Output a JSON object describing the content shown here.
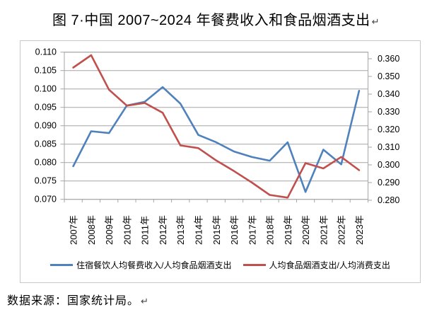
{
  "page": {
    "title": "图 7·中国 2007~2024 年餐费收入和食品烟酒支出",
    "title_end_mark": "↵",
    "source_note": "数据来源：国家统计局。",
    "source_end_mark": "↵"
  },
  "chart_data": {
    "type": "line",
    "title": "图 7 中国 2007~2024 年餐费收入和食品烟酒支出",
    "categories": [
      "2007年",
      "2008年",
      "2009年",
      "2010年",
      "2011年",
      "2012年",
      "2013年",
      "2014年",
      "2015年",
      "2016年",
      "2017年",
      "2018年",
      "2019年",
      "2020年",
      "2021年",
      "2022年",
      "2023年"
    ],
    "series": [
      {
        "name": "住宿餐饮人均餐费收入/人均食品烟酒支出",
        "axis": "left",
        "color": "#4F81BD",
        "values": [
          0.079,
          0.0885,
          0.088,
          0.0955,
          0.0965,
          0.1005,
          0.096,
          0.0875,
          0.0855,
          0.083,
          0.0815,
          0.0805,
          0.0855,
          0.072,
          0.0835,
          0.0795,
          0.0995
        ]
      },
      {
        "name": "人均食品烟酒支出/人均消费支出",
        "axis": "right",
        "color": "#C0504D",
        "values": [
          0.355,
          0.362,
          0.3425,
          0.3335,
          0.335,
          0.3295,
          0.311,
          0.3095,
          0.3025,
          0.2965,
          0.29,
          0.283,
          0.2815,
          0.301,
          0.298,
          0.3045,
          0.297
        ]
      }
    ],
    "left_axis": {
      "min": 0.07,
      "max": 0.11,
      "step": 0.005,
      "ticks": [
        "0.110",
        "0.105",
        "0.100",
        "0.095",
        "0.090",
        "0.085",
        "0.080",
        "0.075",
        "0.070"
      ]
    },
    "right_axis": {
      "min": 0.28,
      "max": 0.36,
      "step": 0.01,
      "ticks": [
        "0.360",
        "0.350",
        "0.340",
        "0.330",
        "0.320",
        "0.310",
        "0.300",
        "0.290",
        "0.280"
      ]
    },
    "grid": true,
    "legend_position": "bottom",
    "colors": {
      "gridline": "#a6a6a6",
      "axis": "#a6a6a6",
      "chart_border": "#c9c9c9"
    }
  }
}
